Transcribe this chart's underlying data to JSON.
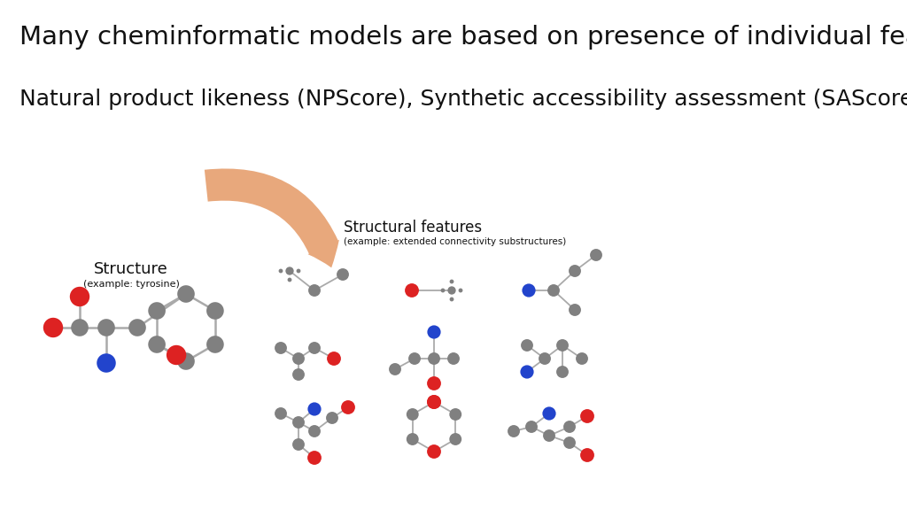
{
  "title": "Many cheminformatic models are based on presence of individual features",
  "subtitle": "Natural product likeness (NPScore), Synthetic accessibility assessment (SAScore, SYBA), etc.",
  "title_fontsize": 21,
  "subtitle_fontsize": 18,
  "bg_color": "#ffffff",
  "text_color": "#111111",
  "gray": "#808080",
  "red": "#dd2222",
  "blue": "#2244cc",
  "arrow_color": "#e8a87c",
  "structure_label": "Structure",
  "structure_sublabel": "(example: tyrosine)",
  "features_label": "Structural features",
  "features_sublabel": "(example: extended connectivity substructures)"
}
